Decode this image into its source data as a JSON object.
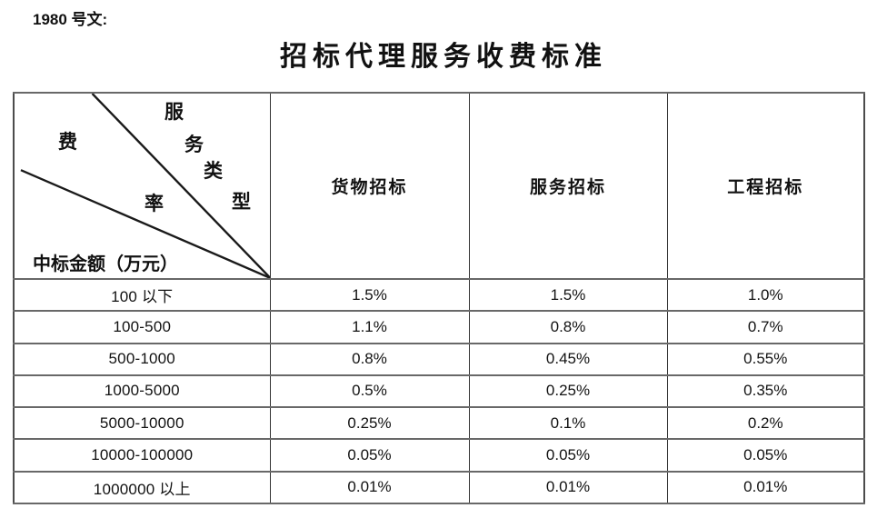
{
  "page": {
    "ref_label": "1980 号文:",
    "title": "招标代理服务收费标准"
  },
  "table": {
    "corner": {
      "fee_rate_chars": [
        "费",
        "率"
      ],
      "service_type_chars": [
        "服",
        "务",
        "类",
        "型"
      ],
      "amount_label": "中标金额（万元）"
    },
    "column_headers": [
      "货物招标",
      "服务招标",
      "工程招标"
    ],
    "rows": [
      {
        "range": "100 以下",
        "values": [
          "1.5%",
          "1.5%",
          "1.0%"
        ]
      },
      {
        "range": "100-500",
        "values": [
          "1.1%",
          "0.8%",
          "0.7%"
        ]
      },
      {
        "range": "500-1000",
        "values": [
          "0.8%",
          "0.45%",
          "0.55%"
        ]
      },
      {
        "range": "1000-5000",
        "values": [
          "0.5%",
          "0.25%",
          "0.35%"
        ]
      },
      {
        "range": "5000-10000",
        "values": [
          "0.25%",
          "0.1%",
          "0.2%"
        ]
      },
      {
        "range": "10000-100000",
        "values": [
          "0.05%",
          "0.05%",
          "0.05%"
        ]
      },
      {
        "range": "1000000 以上",
        "values": [
          "0.01%",
          "0.01%",
          "0.01%"
        ]
      }
    ]
  },
  "colors": {
    "background": "#ffffff",
    "text": "#111111",
    "border_horizontal": "#686868",
    "border_vertical": "#333333"
  }
}
